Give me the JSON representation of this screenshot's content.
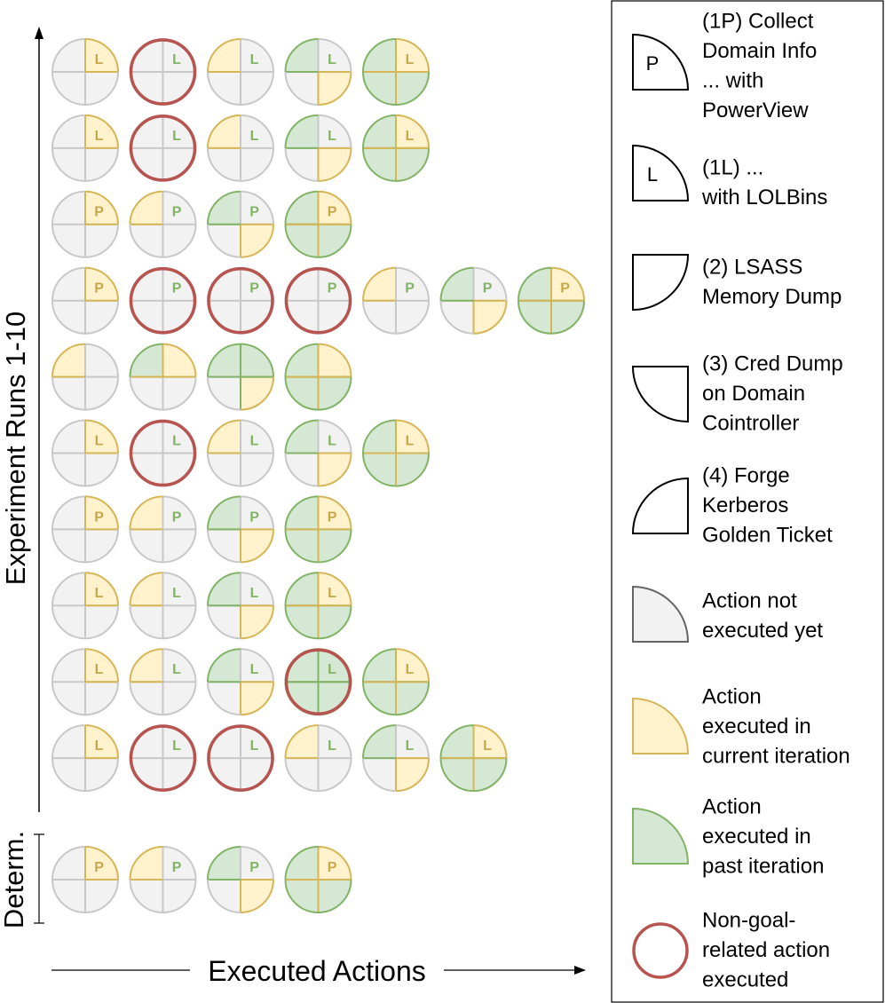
{
  "colors": {
    "gray_fill": "#f2f2f2",
    "gray_stroke": "#c8c8c8",
    "yellow_fill": "#fff2cc",
    "yellow_stroke": "#d6b656",
    "green_fill": "#d5e8d4",
    "green_stroke": "#82b366",
    "red_stroke": "#b85450",
    "axis": "#000000"
  },
  "axis": {
    "y_label": "Experiment Runs 1-10",
    "x_label": "Executed Actions",
    "determ_label": "Determ."
  },
  "runs": [
    {
      "label": "L",
      "actions": [
        {
          "q": [
            "y",
            "g",
            "g",
            "g"
          ],
          "red": false
        },
        {
          "q": [
            "g",
            "g",
            "g",
            "g"
          ],
          "red": true
        },
        {
          "q": [
            "g",
            "g",
            "g",
            "y"
          ],
          "red": false
        },
        {
          "q": [
            "g",
            "g",
            "y",
            "c"
          ],
          "red": false
        },
        {
          "q": [
            "y",
            "c",
            "c",
            "c"
          ],
          "red": false
        }
      ]
    },
    {
      "label": "L",
      "actions": [
        {
          "q": [
            "y",
            "g",
            "g",
            "g"
          ],
          "red": false
        },
        {
          "q": [
            "g",
            "g",
            "g",
            "g"
          ],
          "red": true
        },
        {
          "q": [
            "g",
            "g",
            "g",
            "y"
          ],
          "red": false
        },
        {
          "q": [
            "g",
            "g",
            "y",
            "c"
          ],
          "red": false
        },
        {
          "q": [
            "y",
            "c",
            "c",
            "c"
          ],
          "red": false
        }
      ]
    },
    {
      "label": "P",
      "actions": [
        {
          "q": [
            "y",
            "g",
            "g",
            "g"
          ],
          "red": false
        },
        {
          "q": [
            "g",
            "g",
            "g",
            "y"
          ],
          "red": false
        },
        {
          "q": [
            "g",
            "g",
            "y",
            "c"
          ],
          "red": false
        },
        {
          "q": [
            "y",
            "c",
            "c",
            "c"
          ],
          "red": false
        }
      ]
    },
    {
      "label": "P",
      "actions": [
        {
          "q": [
            "y",
            "g",
            "g",
            "g"
          ],
          "red": false
        },
        {
          "q": [
            "g",
            "g",
            "g",
            "g"
          ],
          "red": true
        },
        {
          "q": [
            "g",
            "g",
            "g",
            "g"
          ],
          "red": true
        },
        {
          "q": [
            "g",
            "g",
            "g",
            "g"
          ],
          "red": true
        },
        {
          "q": [
            "g",
            "g",
            "g",
            "y"
          ],
          "red": false
        },
        {
          "q": [
            "g",
            "g",
            "y",
            "c"
          ],
          "red": false
        },
        {
          "q": [
            "y",
            "c",
            "c",
            "c"
          ],
          "red": false
        }
      ]
    },
    {
      "label": "",
      "actions": [
        {
          "q": [
            "g",
            "g",
            "g",
            "y"
          ],
          "red": false
        },
        {
          "q": [
            "y",
            "g",
            "g",
            "c"
          ],
          "red": false
        },
        {
          "q": [
            "c",
            "g",
            "y",
            "c"
          ],
          "red": false
        },
        {
          "q": [
            "y",
            "c",
            "c",
            "c"
          ],
          "red": false
        }
      ]
    },
    {
      "label": "L",
      "actions": [
        {
          "q": [
            "y",
            "g",
            "g",
            "g"
          ],
          "red": false
        },
        {
          "q": [
            "g",
            "g",
            "g",
            "g"
          ],
          "red": true
        },
        {
          "q": [
            "g",
            "g",
            "g",
            "y"
          ],
          "red": false
        },
        {
          "q": [
            "g",
            "g",
            "y",
            "c"
          ],
          "red": false
        },
        {
          "q": [
            "y",
            "c",
            "c",
            "c"
          ],
          "red": false
        }
      ]
    },
    {
      "label": "P",
      "actions": [
        {
          "q": [
            "y",
            "g",
            "g",
            "g"
          ],
          "red": false
        },
        {
          "q": [
            "g",
            "g",
            "g",
            "y"
          ],
          "red": false
        },
        {
          "q": [
            "g",
            "g",
            "y",
            "c"
          ],
          "red": false
        },
        {
          "q": [
            "y",
            "c",
            "c",
            "c"
          ],
          "red": false
        }
      ]
    },
    {
      "label": "L",
      "actions": [
        {
          "q": [
            "y",
            "g",
            "g",
            "g"
          ],
          "red": false
        },
        {
          "q": [
            "g",
            "g",
            "g",
            "y"
          ],
          "red": false
        },
        {
          "q": [
            "g",
            "g",
            "y",
            "c"
          ],
          "red": false
        },
        {
          "q": [
            "y",
            "c",
            "c",
            "c"
          ],
          "red": false
        }
      ]
    },
    {
      "label": "L",
      "actions": [
        {
          "q": [
            "y",
            "g",
            "g",
            "g"
          ],
          "red": false
        },
        {
          "q": [
            "g",
            "g",
            "g",
            "y"
          ],
          "red": false
        },
        {
          "q": [
            "g",
            "g",
            "y",
            "c"
          ],
          "red": false
        },
        {
          "q": [
            "c",
            "c",
            "c",
            "c"
          ],
          "red": true
        },
        {
          "q": [
            "y",
            "c",
            "c",
            "c"
          ],
          "red": false
        }
      ]
    },
    {
      "label": "L",
      "actions": [
        {
          "q": [
            "y",
            "g",
            "g",
            "g"
          ],
          "red": false
        },
        {
          "q": [
            "g",
            "g",
            "g",
            "g"
          ],
          "red": true
        },
        {
          "q": [
            "g",
            "g",
            "g",
            "g"
          ],
          "red": true
        },
        {
          "q": [
            "g",
            "g",
            "g",
            "y"
          ],
          "red": false
        },
        {
          "q": [
            "g",
            "g",
            "y",
            "c"
          ],
          "red": false
        },
        {
          "q": [
            "y",
            "c",
            "c",
            "c"
          ],
          "red": false
        }
      ]
    }
  ],
  "determ": {
    "label": "P",
    "actions": [
      {
        "q": [
          "y",
          "g",
          "g",
          "g"
        ],
        "red": false
      },
      {
        "q": [
          "g",
          "g",
          "g",
          "y"
        ],
        "red": false
      },
      {
        "q": [
          "g",
          "g",
          "y",
          "c"
        ],
        "red": false
      },
      {
        "q": [
          "y",
          "c",
          "c",
          "c"
        ],
        "red": false
      }
    ]
  },
  "legend": [
    {
      "kind": "tr",
      "letter": "P",
      "lines": [
        "(1P) Collect",
        "Domain Info",
        "... with",
        "PowerView"
      ]
    },
    {
      "kind": "tr",
      "letter": "L",
      "lines": [
        "(1L) ...",
        "with LOLBins"
      ]
    },
    {
      "kind": "br",
      "letter": "",
      "lines": [
        "(2) LSASS",
        "Memory Dump"
      ]
    },
    {
      "kind": "bl",
      "letter": "",
      "lines": [
        "(3) Cred Dump",
        "on Domain",
        "Cointroller"
      ]
    },
    {
      "kind": "tl",
      "letter": "",
      "lines": [
        "(4) Forge",
        "Kerberos",
        "Golden Ticket"
      ]
    },
    {
      "kind": "gray",
      "letter": "",
      "lines": [
        "Action not",
        "executed yet"
      ]
    },
    {
      "kind": "yellow",
      "letter": "",
      "lines": [
        "Action",
        "executed in",
        "current iteration"
      ]
    },
    {
      "kind": "green",
      "letter": "",
      "lines": [
        "Action",
        "executed in",
        "past iteration"
      ]
    },
    {
      "kind": "red",
      "letter": "",
      "lines": [
        "Non-goal-",
        "related action",
        "executed"
      ]
    }
  ]
}
